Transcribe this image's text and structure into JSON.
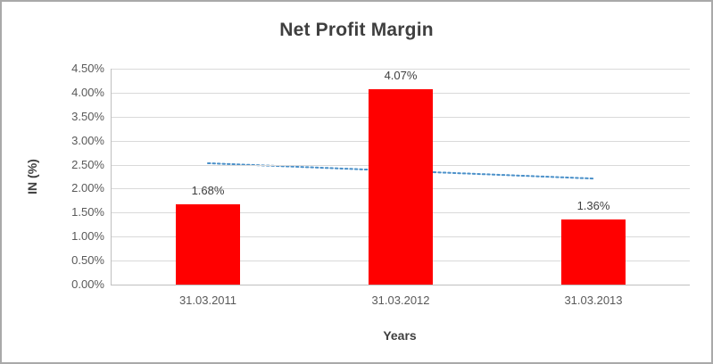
{
  "chart_data": {
    "type": "bar",
    "title": "Net Profit Margin",
    "xlabel": "Years",
    "ylabel": "IN (%)",
    "categories": [
      "31.03.2011",
      "31.03.2012",
      "31.03.2013"
    ],
    "values": [
      1.68,
      4.07,
      1.36
    ],
    "data_labels": [
      "1.68%",
      "4.07%",
      "1.36%"
    ],
    "ylim": [
      0,
      4.5
    ],
    "yticks": [
      {
        "value": 0.0,
        "label": "0.00%"
      },
      {
        "value": 0.5,
        "label": "0.50%"
      },
      {
        "value": 1.0,
        "label": "1.00%"
      },
      {
        "value": 1.5,
        "label": "1.50%"
      },
      {
        "value": 2.0,
        "label": "2.00%"
      },
      {
        "value": 2.5,
        "label": "2.50%"
      },
      {
        "value": 3.0,
        "label": "3.00%"
      },
      {
        "value": 3.5,
        "label": "3.50%"
      },
      {
        "value": 4.0,
        "label": "4.00%"
      },
      {
        "value": 4.5,
        "label": "4.50%"
      }
    ],
    "grid": true,
    "legend": "none",
    "bar_color": "#FF0000",
    "grid_color": "#D9D9D9",
    "trendline": {
      "style": "dotted",
      "color": "#4A90C9",
      "start_value": 2.53,
      "end_value": 2.21
    }
  },
  "frame": {
    "border_color": "#A9A9A9",
    "background": "#FFFFFF"
  }
}
